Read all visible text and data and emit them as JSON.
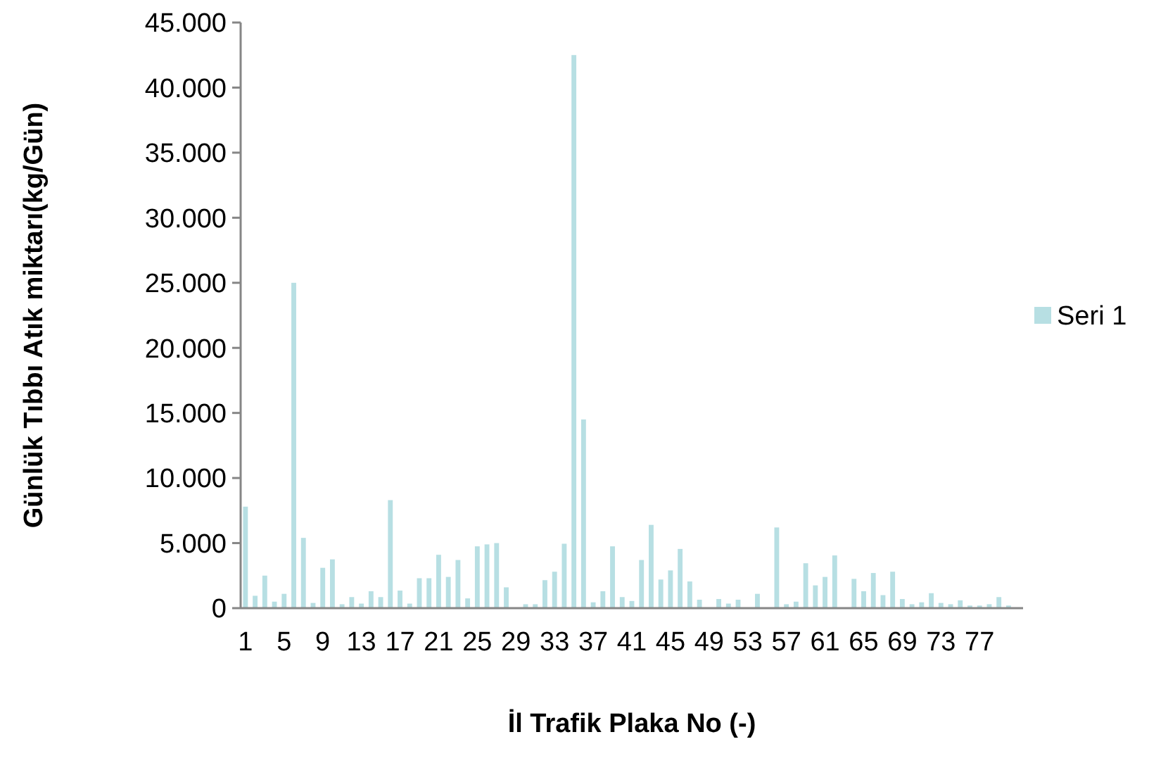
{
  "chart_data": {
    "type": "bar",
    "xlabel": "İl Trafik Plaka No (-)",
    "ylabel": "Günlük Tıbbı Atık miktarı(kg/Gün)",
    "categories": [
      "1",
      null,
      null,
      null,
      "5",
      null,
      null,
      null,
      "9",
      null,
      null,
      null,
      "13",
      null,
      null,
      null,
      "17",
      null,
      null,
      null,
      "21",
      null,
      null,
      null,
      "25",
      null,
      null,
      null,
      "29",
      null,
      null,
      null,
      "33",
      null,
      null,
      null,
      "37",
      null,
      null,
      null,
      "41",
      null,
      null,
      null,
      "45",
      null,
      null,
      null,
      "49",
      null,
      null,
      null,
      "53",
      null,
      null,
      null,
      "57",
      null,
      null,
      null,
      "61",
      null,
      null,
      null,
      "65",
      null,
      null,
      null,
      "69",
      null,
      null,
      null,
      "73",
      null,
      null,
      null,
      "77",
      null,
      null,
      null,
      null
    ],
    "series": [
      {
        "name": "Seri 1",
        "color": "#b7dfe3",
        "values": [
          7800,
          950,
          2500,
          500,
          1100,
          25000,
          5400,
          400,
          3100,
          3750,
          300,
          850,
          350,
          1300,
          850,
          8300,
          1350,
          350,
          2300,
          2300,
          4100,
          2400,
          3700,
          750,
          4750,
          4900,
          5000,
          1600,
          0,
          300,
          300,
          2150,
          2800,
          4950,
          42500,
          14500,
          450,
          1300,
          4750,
          850,
          550,
          3700,
          6400,
          2200,
          2900,
          4550,
          2050,
          650,
          0,
          700,
          350,
          650,
          0,
          1100,
          0,
          6200,
          300,
          500,
          3450,
          1750,
          2400,
          4050,
          0,
          2250,
          1300,
          2700,
          1000,
          2800,
          700,
          300,
          450,
          1150,
          400,
          300,
          600,
          200,
          200,
          300,
          850,
          200,
          0
        ]
      }
    ],
    "ylim": [
      0,
      45000
    ],
    "yticks": [
      {
        "value": 0,
        "label": "0"
      },
      {
        "value": 5000,
        "label": "5.000"
      },
      {
        "value": 10000,
        "label": "10.000"
      },
      {
        "value": 15000,
        "label": "15.000"
      },
      {
        "value": 20000,
        "label": "20.000"
      },
      {
        "value": 25000,
        "label": "25.000"
      },
      {
        "value": 30000,
        "label": "30.000"
      },
      {
        "value": 35000,
        "label": "35.000"
      },
      {
        "value": 40000,
        "label": "40.000"
      },
      {
        "value": 45000,
        "label": "45.000"
      }
    ],
    "grid": false,
    "legend": "right"
  }
}
